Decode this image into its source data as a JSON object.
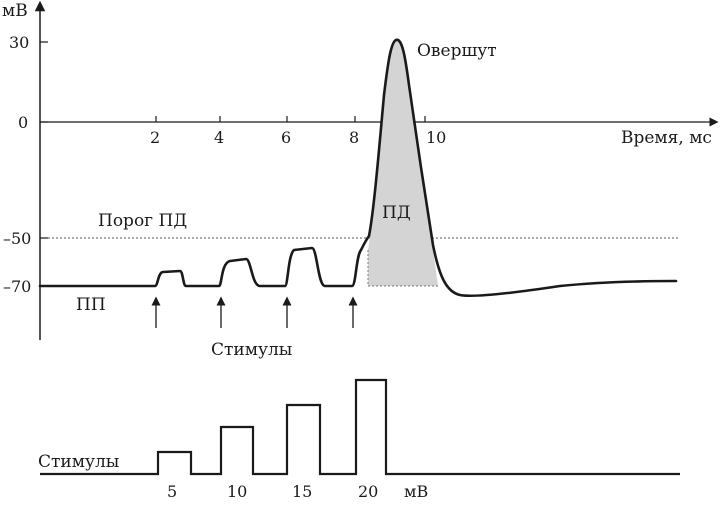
{
  "axes": {
    "y_unit": "мВ",
    "x_label": "Время, мс",
    "y_ticks": [
      "30",
      "0",
      "–50",
      "–70"
    ],
    "x_ticks": [
      "2",
      "4",
      "6",
      "8",
      "10"
    ]
  },
  "labels": {
    "overshoot": "Овершут",
    "threshold": "Порог ПД",
    "action_potential": "ПД",
    "resting_potential": "ПП",
    "stimuli_upper": "Стимулы",
    "stimuli_lower": "Стимулы"
  },
  "stimulus_axis": {
    "ticks": [
      "5",
      "10",
      "15",
      "20"
    ],
    "unit": "мВ"
  },
  "colors": {
    "ink": "#1a1a1a",
    "ap_fill": "#d4d4d4"
  }
}
